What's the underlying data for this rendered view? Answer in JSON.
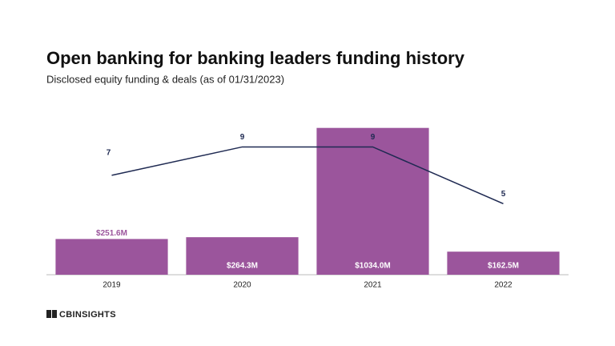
{
  "chart_data": {
    "type": "bar",
    "title": "Open banking for banking leaders funding history",
    "subtitle": "Disclosed equity funding & deals (as of 01/31/2023)",
    "logo": "CBINSIGHTS",
    "categories": [
      "2019",
      "2020",
      "2021",
      "2022"
    ],
    "series": [
      {
        "type": "bar",
        "color": "#9b559c",
        "values": [
          251.6,
          264.3,
          1034.0,
          162.5
        ],
        "value_labels": [
          "$251.6M",
          "$264.3M",
          "$1034.0M",
          "$162.5M"
        ]
      },
      {
        "type": "line",
        "axis": "y2",
        "color": "#1f2a52",
        "values": [
          7,
          9,
          9,
          5
        ]
      }
    ],
    "ylim": [
      0,
      1100
    ],
    "y2lim": [
      0,
      11
    ]
  }
}
